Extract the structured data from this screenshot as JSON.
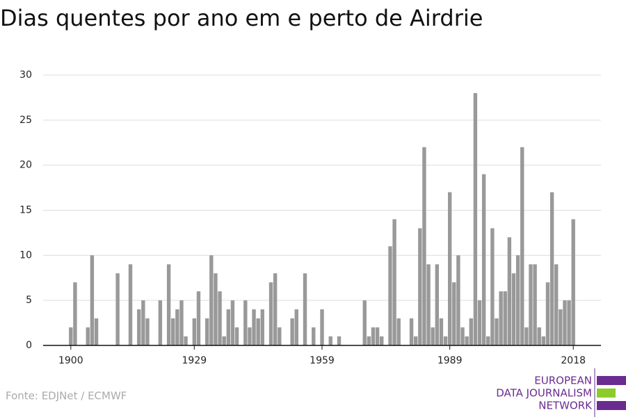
{
  "chart_data": {
    "type": "bar",
    "title": "Dias quentes por ano em e perto de Airdrie",
    "source": "Fonte: EDJNet / ECMWF",
    "logo": [
      "EUROPEAN",
      "DATA JOURNALISM",
      "NETWORK"
    ],
    "color": "#999999",
    "x": [
      1900,
      1901,
      1902,
      1903,
      1904,
      1905,
      1906,
      1907,
      1908,
      1909,
      1910,
      1911,
      1912,
      1913,
      1914,
      1915,
      1916,
      1917,
      1918,
      1919,
      1920,
      1921,
      1922,
      1923,
      1924,
      1925,
      1926,
      1927,
      1928,
      1929,
      1930,
      1931,
      1932,
      1933,
      1934,
      1935,
      1936,
      1937,
      1938,
      1939,
      1940,
      1941,
      1942,
      1943,
      1944,
      1945,
      1946,
      1947,
      1948,
      1949,
      1950,
      1951,
      1952,
      1953,
      1954,
      1955,
      1956,
      1957,
      1958,
      1959,
      1960,
      1961,
      1962,
      1963,
      1964,
      1965,
      1966,
      1967,
      1968,
      1969,
      1970,
      1971,
      1972,
      1973,
      1974,
      1975,
      1976,
      1977,
      1978,
      1979,
      1980,
      1981,
      1982,
      1983,
      1984,
      1985,
      1986,
      1987,
      1988,
      1989,
      1990,
      1991,
      1992,
      1993,
      1994,
      1995,
      1996,
      1997,
      1998,
      1999,
      2000,
      2001,
      2002,
      2003,
      2004,
      2005,
      2006,
      2007,
      2008,
      2009,
      2010,
      2011,
      2012,
      2013,
      2014,
      2015,
      2016,
      2017,
      2018
    ],
    "values": [
      2,
      7,
      0,
      0,
      2,
      10,
      3,
      0,
      0,
      0,
      0,
      8,
      0,
      0,
      9,
      0,
      4,
      5,
      3,
      0,
      0,
      5,
      0,
      9,
      3,
      4,
      5,
      1,
      0,
      3,
      6,
      0,
      3,
      10,
      8,
      6,
      1,
      4,
      5,
      2,
      0,
      5,
      2,
      4,
      3,
      4,
      0,
      7,
      8,
      2,
      0,
      0,
      3,
      4,
      0,
      8,
      0,
      2,
      0,
      4,
      0,
      1,
      0,
      1,
      0,
      0,
      0,
      0,
      0,
      5,
      1,
      2,
      2,
      1,
      0,
      11,
      14,
      3,
      0,
      0,
      3,
      1,
      13,
      22,
      9,
      2,
      9,
      3,
      1,
      17,
      7,
      10,
      2,
      1,
      3,
      28,
      5,
      19,
      1,
      13,
      3,
      6,
      6,
      12,
      8,
      10,
      22,
      2,
      9,
      9,
      2,
      1,
      7,
      17,
      9,
      4,
      5,
      5,
      14
    ],
    "xlim": [
      1893.5,
      2024.5
    ],
    "xticks": [
      1900,
      1929,
      1959,
      1989,
      2018
    ],
    "ylim": [
      0,
      30
    ],
    "yticks": [
      0,
      5,
      10,
      15,
      20,
      25,
      30
    ],
    "grid": true
  }
}
